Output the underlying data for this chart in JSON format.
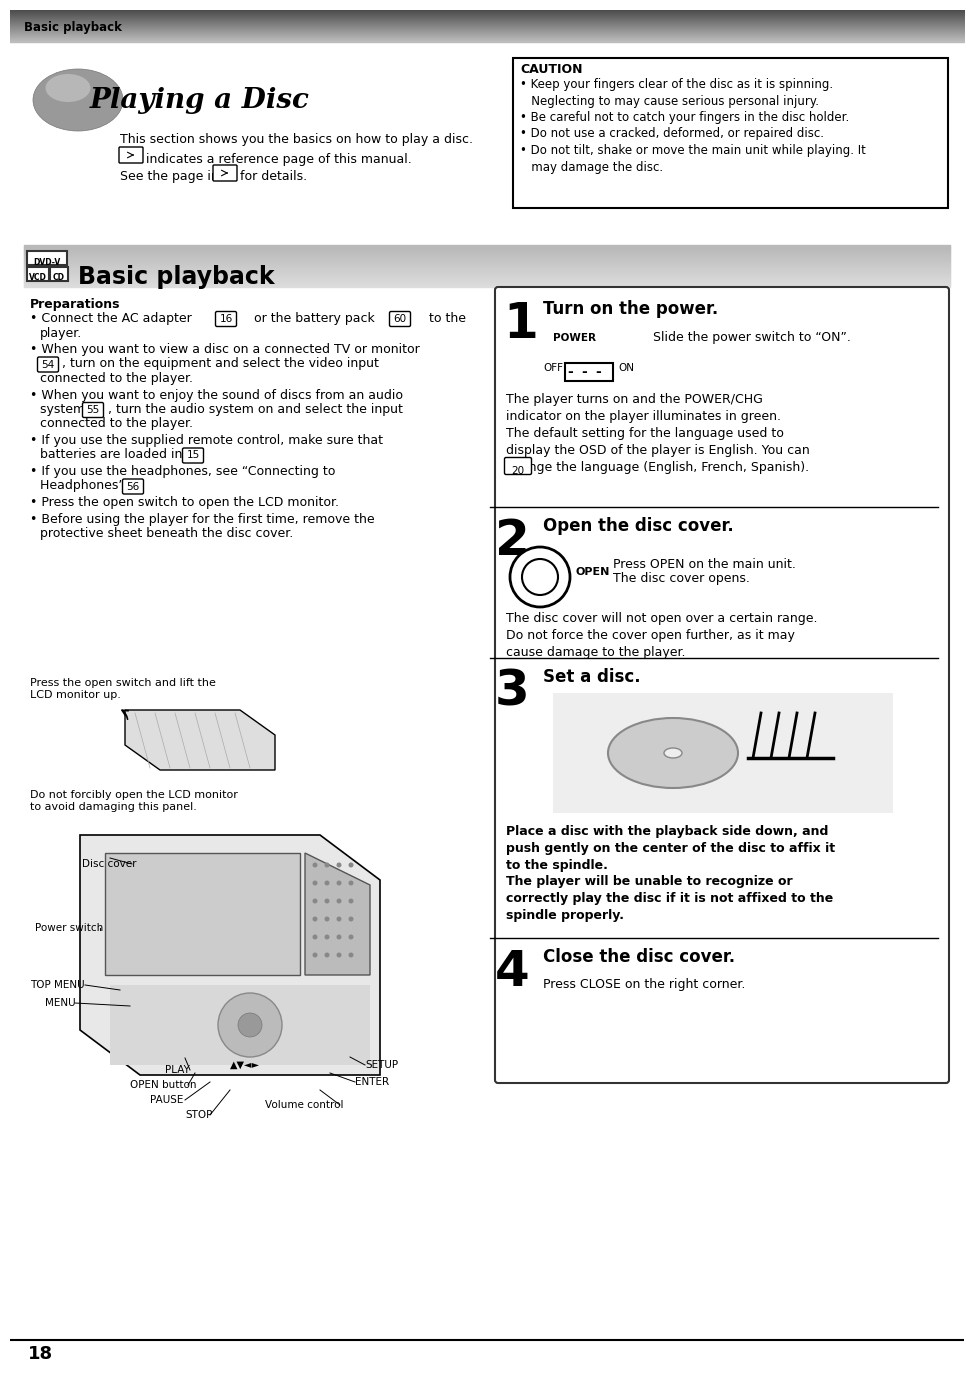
{
  "page_bg": "#ffffff",
  "header_text": "Basic playback",
  "title_text": "Playing a Disc",
  "subtitle1": "This section shows you the basics on how to play a disc.",
  "subtitle2": "indicates a reference page of this manual.",
  "subtitle3": "See the page in",
  "subtitle3b": "for details.",
  "caution_title": "CAUTION",
  "caution_lines": [
    "• Keep your fingers clear of the disc as it is spinning.",
    "   Neglecting to may cause serious personal injury.",
    "• Be careful not to catch your fingers in the disc holder.",
    "• Do not use a cracked, deformed, or repaired disc.",
    "• Do not tilt, shake or move the main unit while playing. It",
    "   may damage the disc."
  ],
  "section_title": "Basic playback",
  "dvdv": "DVD-V",
  "vcd": "VCD",
  "cd": "CD",
  "prep_title": "Preparations",
  "prep_lines": [
    [
      "• Connect the AC adapter ",
      "16",
      " or the battery pack ",
      "60",
      " to the"
    ],
    [
      "   player.",
      "",
      "",
      "",
      ""
    ],
    [
      "• When you want to view a disc on a connected TV or monitor",
      "",
      "",
      "",
      ""
    ],
    [
      "   ",
      "54",
      ", turn on the equipment and select the video input",
      "",
      ""
    ],
    [
      "   connected to the player.",
      "",
      "",
      "",
      ""
    ],
    [
      "• When you want to enjoy the sound of discs from an audio",
      "",
      "",
      "",
      ""
    ],
    [
      "   system ",
      "55",
      ", turn the audio system on and select the input",
      "",
      ""
    ],
    [
      "   connected to the player.",
      "",
      "",
      "",
      ""
    ],
    [
      "• If you use the supplied remote control, make sure that",
      "",
      "",
      "",
      ""
    ],
    [
      "   batteries are loaded in it. ",
      "15",
      "",
      "",
      ""
    ],
    [
      "• If you use the headphones, see “Connecting to",
      "",
      "",
      "",
      ""
    ],
    [
      "   Headphones”. ",
      "56",
      "",
      "",
      ""
    ],
    [
      "• Press the open switch to open the LCD monitor.",
      "",
      "",
      "",
      ""
    ],
    [
      "• Before using the player for the first time, remove the",
      "",
      "",
      "",
      ""
    ],
    [
      "   protective sheet beneath the disc cover.",
      "",
      "",
      "",
      ""
    ]
  ],
  "label_open_switch": "Press the open switch and lift the\nLCD monitor up.",
  "label_no_force": "Do not forcibly open the LCD monitor\nto avoid damaging this panel.",
  "label_disc_cover": "Disc cover",
  "label_power_switch": "Power switch",
  "label_top_menu": "TOP MENU",
  "label_menu": "MENU",
  "label_play": "PLAY",
  "label_open_button": "OPEN button",
  "label_pause": "PAUSE",
  "label_stop": "STOP",
  "label_volume": "Volume control",
  "label_setup": "SETUP",
  "label_enter": "ENTER",
  "step1_num": "1",
  "step1_title": "Turn on the power.",
  "step1_power_label": "POWER",
  "step1_slide": "Slide the power switch to “ON”.",
  "step1_off": "OFF",
  "step1_on": "ON",
  "step1_body": "The player turns on and the POWER/CHG\nindicator on the player illuminates in green.\nThe default setting for the language used to\ndisplay the OSD of the player is English. You can\nchange the language (English, French, Spanish).",
  "step1_ref": "20",
  "step2_num": "2",
  "step2_title": "Open the disc cover.",
  "step2_open_label": "OPEN",
  "step2_text1": "Press OPEN on the main unit.",
  "step2_text2": "The disc cover opens.",
  "step2_body": "The disc cover will not open over a certain range.\nDo not force the cover open further, as it may\ncause damage to the player.",
  "step3_num": "3",
  "step3_title": "Set a disc.",
  "step3_body1": "Place a disc with the playback side down, and\npush gently on the center of the disc to affix it\nto the spindle.",
  "step3_body2": "The player will be unable to recognize or\ncorrectly play the disc if it is not affixed to the\nspindle properly.",
  "step4_num": "4",
  "step4_title": "Close the disc cover.",
  "step4_body": "Press CLOSE on the right corner.",
  "page_number": "18"
}
